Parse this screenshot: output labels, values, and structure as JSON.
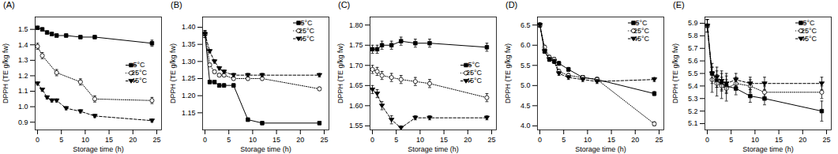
{
  "chart_data": [
    {
      "type": "line",
      "title": "(A)",
      "xlabel": "Storage time (h)",
      "ylabel": "DPPH (TE g/kg fw)",
      "xlim": [
        -0.5,
        26
      ],
      "xticks": [
        0,
        5,
        10,
        15,
        20,
        25
      ],
      "ylim": [
        0.85,
        1.58
      ],
      "yticks": [
        0.9,
        {
          "value": 1.0,
          "label": "1.0"
        },
        1.1,
        1.2,
        1.3,
        1.4,
        1.5
      ],
      "legend": "center right",
      "grid": false,
      "series": [
        {
          "name": "5°C",
          "color": "black",
          "marker": "square",
          "line_style": "solid",
          "x": [
            0,
            1,
            2,
            3,
            4,
            6,
            9,
            12,
            24
          ],
          "values": [
            1.51,
            1.5,
            1.48,
            1.47,
            1.46,
            1.46,
            1.45,
            1.45,
            1.41
          ],
          "yerr": [
            0.01,
            0.01,
            0.01,
            0.01,
            0.01,
            0.01,
            0.01,
            0.01,
            0.02
          ]
        },
        {
          "name": "25°C",
          "color": "black",
          "marker": "open-circle",
          "line_style": "dotted",
          "x": [
            0,
            1,
            4,
            9,
            12,
            24
          ],
          "values": [
            1.39,
            1.33,
            1.22,
            1.16,
            1.05,
            1.04
          ],
          "yerr": [
            0.02,
            0.02,
            0.02,
            0.02,
            0.02,
            0.02
          ]
        },
        {
          "name": "45°C",
          "color": "black",
          "marker": "triangle-down",
          "line_style": "dashed",
          "x": [
            0,
            1,
            2,
            3,
            4,
            6,
            9,
            12,
            24
          ],
          "values": [
            1.15,
            1.11,
            1.06,
            1.04,
            1.04,
            0.99,
            0.97,
            0.94,
            0.91
          ],
          "yerr": [
            0.01,
            0.01,
            0.01,
            0.01,
            0.01,
            0.01,
            0.01,
            0.01,
            0.01
          ]
        }
      ]
    },
    {
      "type": "line",
      "title": "(B)",
      "xlabel": "Storage time (h)",
      "ylabel": "DPPH (TE g/kg fw)",
      "xlim": [
        -0.5,
        26
      ],
      "xticks": [
        0,
        5,
        10,
        15,
        20,
        25
      ],
      "ylim": [
        1.1,
        1.43
      ],
      "yticks": [
        1.15,
        {
          "value": 1.2,
          "label": "1.20"
        },
        1.25,
        {
          "value": 1.3,
          "label": "1.30"
        },
        1.35,
        {
          "value": 1.4,
          "label": "1.40"
        }
      ],
      "legend": "upper right",
      "grid": false,
      "series": [
        {
          "name": "5°C",
          "color": "black",
          "marker": "square",
          "line_style": "solid",
          "x": [
            0,
            1,
            2,
            3,
            4,
            6,
            9,
            12,
            24
          ],
          "values": [
            1.38,
            1.24,
            1.24,
            1.23,
            1.23,
            1.23,
            1.13,
            1.12,
            1.12
          ],
          "yerr": [
            0.01,
            0.005,
            0.005,
            0.005,
            0.005,
            0.005,
            0.005,
            0.005,
            0.005
          ]
        },
        {
          "name": "25°C",
          "color": "black",
          "marker": "open-circle",
          "line_style": "dotted",
          "x": [
            0,
            1,
            2,
            3,
            4,
            6,
            9,
            12,
            24
          ],
          "values": [
            1.38,
            1.29,
            1.27,
            1.26,
            1.26,
            1.25,
            1.25,
            1.25,
            1.22
          ],
          "yerr": [
            0.01,
            0.005,
            0.005,
            0.005,
            0.005,
            0.005,
            0.005,
            0.005,
            0.005
          ]
        },
        {
          "name": "45°C",
          "color": "black",
          "marker": "triangle-down",
          "line_style": "dashed",
          "x": [
            0,
            1,
            2,
            3,
            4,
            6,
            9,
            12,
            24
          ],
          "values": [
            1.38,
            1.33,
            1.3,
            1.28,
            1.27,
            1.26,
            1.26,
            1.26,
            1.26
          ],
          "yerr": [
            0.01,
            0.005,
            0.005,
            0.005,
            0.005,
            0.005,
            0.005,
            0.005,
            0.005
          ]
        }
      ]
    },
    {
      "type": "line",
      "title": "(C)",
      "xlabel": "Storage time (h)",
      "ylabel": "DPPH (TE g/kg fw)",
      "xlim": [
        -0.5,
        26
      ],
      "xticks": [
        0,
        5,
        10,
        15,
        20,
        25
      ],
      "ylim": [
        1.54,
        1.82
      ],
      "yticks": [
        1.55,
        {
          "value": 1.6,
          "label": "1.60"
        },
        1.65,
        {
          "value": 1.7,
          "label": "1.70"
        },
        1.75,
        {
          "value": 1.8,
          "label": "1.80"
        }
      ],
      "legend": "center right",
      "grid": false,
      "series": [
        {
          "name": "5°C",
          "color": "black",
          "marker": "square",
          "line_style": "solid",
          "x": [
            0,
            1,
            2,
            4,
            6,
            9,
            12,
            24
          ],
          "values": [
            1.74,
            1.74,
            1.75,
            1.75,
            1.76,
            1.755,
            1.755,
            1.745
          ],
          "yerr": [
            0.01,
            0.01,
            0.01,
            0.01,
            0.01,
            0.01,
            0.01,
            0.01
          ]
        },
        {
          "name": "25°C",
          "color": "black",
          "marker": "open-circle",
          "line_style": "dotted",
          "x": [
            0,
            1,
            2,
            4,
            6,
            9,
            12,
            24
          ],
          "values": [
            1.69,
            1.685,
            1.675,
            1.67,
            1.665,
            1.66,
            1.655,
            1.62
          ],
          "yerr": [
            0.01,
            0.01,
            0.01,
            0.01,
            0.01,
            0.01,
            0.01,
            0.01
          ]
        },
        {
          "name": "45°C",
          "color": "black",
          "marker": "triangle-down",
          "line_style": "dashed",
          "x": [
            0,
            1,
            2,
            4,
            6,
            9,
            12,
            24
          ],
          "values": [
            1.64,
            1.63,
            1.6,
            1.565,
            1.545,
            1.57,
            1.57,
            1.57
          ],
          "yerr": [
            0.01,
            0.01,
            0.01,
            0.01,
            0.005,
            0.005,
            0.005,
            0.005
          ]
        }
      ]
    },
    {
      "type": "line",
      "title": "(D)",
      "xlabel": "Storage time (h)",
      "ylabel": "DPPH (TE g/kg fw)",
      "xlim": [
        -0.5,
        26
      ],
      "xticks": [
        0,
        5,
        10,
        15,
        20,
        25
      ],
      "ylim": [
        3.9,
        6.7
      ],
      "yticks": [
        {
          "value": 4.0,
          "label": "4.0"
        },
        4.5,
        {
          "value": 5.0,
          "label": "5.0"
        },
        5.5,
        {
          "value": 6.0,
          "label": "6.0"
        },
        6.5
      ],
      "legend": "upper right",
      "grid": false,
      "series": [
        {
          "name": "5°C",
          "color": "black",
          "marker": "square",
          "line_style": "solid",
          "x": [
            0,
            1,
            2,
            3,
            4,
            6,
            9,
            12,
            24
          ],
          "values": [
            6.5,
            5.85,
            5.65,
            5.6,
            5.55,
            5.4,
            5.2,
            5.15,
            4.8
          ],
          "yerr": [
            0.05,
            0.05,
            0.05,
            0.05,
            0.05,
            0.05,
            0.05,
            0.05,
            0.05
          ]
        },
        {
          "name": "25°C",
          "color": "black",
          "marker": "open-circle",
          "line_style": "dotted",
          "x": [
            0,
            1,
            2,
            3,
            4,
            6,
            9,
            12,
            24
          ],
          "values": [
            6.5,
            5.95,
            5.7,
            5.65,
            5.35,
            5.25,
            5.2,
            5.15,
            4.05
          ],
          "yerr": [
            0.05,
            0.05,
            0.05,
            0.05,
            0.05,
            0.05,
            0.05,
            0.05,
            0.05
          ]
        },
        {
          "name": "45°C",
          "color": "black",
          "marker": "triangle-down",
          "line_style": "dashed",
          "x": [
            0,
            1,
            2,
            3,
            4,
            6,
            9,
            12,
            24
          ],
          "values": [
            6.5,
            5.85,
            5.65,
            5.6,
            5.3,
            5.2,
            5.15,
            5.1,
            5.15
          ],
          "yerr": [
            0.05,
            0.05,
            0.05,
            0.05,
            0.05,
            0.05,
            0.05,
            0.05,
            0.05
          ]
        }
      ]
    },
    {
      "type": "line",
      "title": "(E)",
      "xlabel": "Storage time (h)",
      "ylabel": "DPPH (TE g/kg fw)",
      "xlim": [
        -0.5,
        26
      ],
      "xticks": [
        0,
        5,
        10,
        15,
        20,
        25
      ],
      "ylim": [
        5.05,
        5.95
      ],
      "yticks": [
        5.1,
        5.2,
        5.3,
        5.4,
        5.5,
        5.6,
        5.7,
        5.8,
        5.9
      ],
      "legend": "upper right",
      "grid": false,
      "series": [
        {
          "name": "5°C",
          "color": "black",
          "marker": "square",
          "line_style": "solid",
          "x": [
            0,
            1,
            2,
            3,
            4,
            6,
            9,
            12,
            24
          ],
          "values": [
            5.88,
            5.5,
            5.44,
            5.42,
            5.4,
            5.38,
            5.32,
            5.3,
            5.2
          ],
          "yerr": [
            0.05,
            0.05,
            0.05,
            0.05,
            0.05,
            0.05,
            0.05,
            0.05,
            0.08
          ]
        },
        {
          "name": "25°C",
          "color": "black",
          "marker": "open-circle",
          "line_style": "dotted",
          "x": [
            0,
            1,
            2,
            3,
            4,
            6,
            9,
            12,
            24
          ],
          "values": [
            5.88,
            5.45,
            5.42,
            5.4,
            5.38,
            5.42,
            5.4,
            5.35,
            5.35
          ],
          "yerr": [
            0.05,
            0.1,
            0.1,
            0.1,
            0.1,
            0.05,
            0.05,
            0.05,
            0.05
          ]
        },
        {
          "name": "45°C",
          "color": "black",
          "marker": "triangle-down",
          "line_style": "dashed",
          "x": [
            0,
            1,
            2,
            3,
            4,
            6,
            9,
            12,
            24
          ],
          "values": [
            5.88,
            5.5,
            5.47,
            5.44,
            5.42,
            5.45,
            5.42,
            5.42,
            5.42
          ],
          "yerr": [
            0.05,
            0.08,
            0.08,
            0.08,
            0.08,
            0.05,
            0.05,
            0.05,
            0.05
          ]
        }
      ]
    }
  ]
}
